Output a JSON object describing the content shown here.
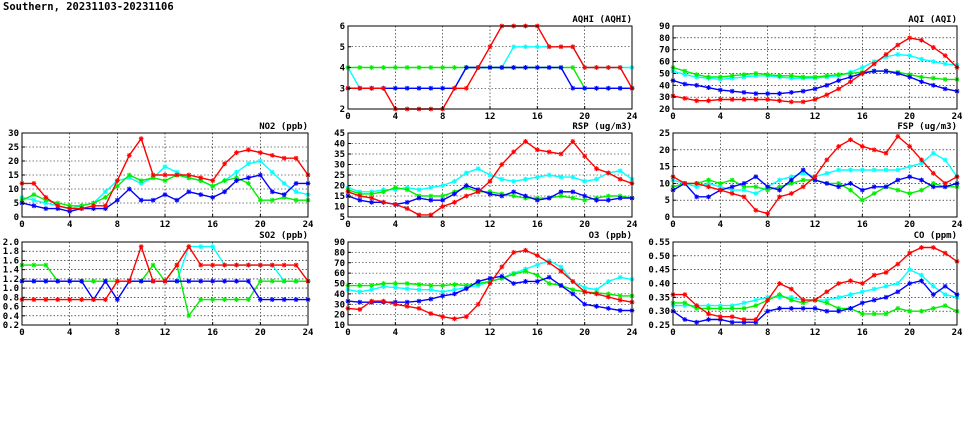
{
  "page": {
    "title": "Southern, 20231103-20231106"
  },
  "series_colors": [
    "#00ffff",
    "#00ee00",
    "#0000ff",
    "#ff0000"
  ],
  "chart_data": [
    {
      "id": "aqhi",
      "type": "line",
      "title": "AQHI (AQHI)",
      "xlim": [
        0,
        24
      ],
      "xticks": [
        0,
        4,
        8,
        12,
        16,
        20,
        24
      ],
      "ylim": [
        2,
        6
      ],
      "yticks": [
        2,
        3,
        4,
        5,
        6
      ],
      "grid": true,
      "series": [
        {
          "values": [
            4,
            3,
            3,
            3,
            3,
            3,
            3,
            3,
            3,
            3,
            4,
            4,
            4,
            4,
            5,
            5,
            5,
            5,
            5,
            5,
            4,
            4,
            4,
            4,
            4
          ]
        },
        {
          "values": [
            4,
            4,
            4,
            4,
            4,
            4,
            4,
            4,
            4,
            4,
            4,
            4,
            4,
            4,
            4,
            4,
            4,
            4,
            4,
            4,
            3,
            3,
            3,
            3,
            3
          ]
        },
        {
          "values": [
            3,
            3,
            3,
            3,
            3,
            3,
            3,
            3,
            3,
            3,
            4,
            4,
            4,
            4,
            4,
            4,
            4,
            4,
            4,
            3,
            3,
            3,
            3,
            3,
            3
          ]
        },
        {
          "values": [
            3,
            3,
            3,
            3,
            2,
            2,
            2,
            2,
            2,
            3,
            3,
            4,
            5,
            6,
            6,
            6,
            6,
            5,
            5,
            5,
            4,
            4,
            4,
            4,
            3
          ]
        }
      ]
    },
    {
      "id": "aqi",
      "type": "line",
      "title": "AQI (AQI)",
      "xlim": [
        0,
        24
      ],
      "xticks": [
        0,
        4,
        8,
        12,
        16,
        20,
        24
      ],
      "ylim": [
        20,
        90
      ],
      "yticks": [
        20,
        30,
        40,
        50,
        60,
        70,
        80,
        90
      ],
      "grid": true,
      "series": [
        {
          "values": [
            52,
            49,
            47,
            46,
            45,
            46,
            47,
            48,
            48,
            47,
            46,
            46,
            46,
            47,
            48,
            51,
            55,
            60,
            64,
            66,
            65,
            62,
            60,
            58,
            57
          ]
        },
        {
          "values": [
            55,
            52,
            49,
            47,
            47,
            48,
            49,
            50,
            49,
            48,
            48,
            47,
            47,
            48,
            49,
            50,
            51,
            52,
            52,
            51,
            49,
            47,
            46,
            45,
            45
          ]
        },
        {
          "values": [
            44,
            41,
            40,
            38,
            36,
            35,
            34,
            33,
            33,
            33,
            34,
            35,
            37,
            40,
            44,
            47,
            50,
            52,
            52,
            50,
            47,
            43,
            40,
            37,
            35
          ]
        },
        {
          "values": [
            31,
            29,
            27,
            27,
            28,
            28,
            28,
            28,
            28,
            27,
            26,
            26,
            28,
            32,
            37,
            43,
            50,
            58,
            66,
            74,
            80,
            78,
            72,
            65,
            55
          ]
        }
      ]
    },
    {
      "id": "no2",
      "type": "line",
      "title": "NO2 (ppb)",
      "xlim": [
        0,
        24
      ],
      "xticks": [
        0,
        4,
        8,
        12,
        16,
        20,
        24
      ],
      "ylim": [
        0,
        30
      ],
      "yticks": [
        0,
        5,
        10,
        15,
        20,
        25,
        30
      ],
      "grid": true,
      "series": [
        {
          "values": [
            7,
            6,
            5,
            4,
            3,
            4,
            5,
            9,
            13,
            14,
            12,
            14,
            18,
            16,
            14,
            13,
            11,
            13,
            16,
            19,
            20,
            16,
            12,
            9,
            8
          ]
        },
        {
          "values": [
            6,
            8,
            6,
            5,
            4,
            4,
            5,
            7,
            11,
            15,
            13,
            14,
            13,
            15,
            14,
            13,
            11,
            13,
            14,
            12,
            6,
            6,
            7,
            6,
            6
          ]
        },
        {
          "values": [
            5,
            4,
            3,
            3,
            2,
            3,
            3,
            3,
            6,
            10,
            6,
            6,
            8,
            6,
            9,
            8,
            7,
            9,
            13,
            14,
            15,
            9,
            8,
            12,
            12
          ]
        },
        {
          "values": [
            12,
            12,
            7,
            4,
            3,
            3,
            4,
            4,
            13,
            22,
            28,
            15,
            15,
            15,
            15,
            14,
            13,
            19,
            23,
            24,
            23,
            22,
            21,
            21,
            15
          ]
        }
      ]
    },
    {
      "id": "rsp",
      "type": "line",
      "title": "RSP (ug/m3)",
      "xlim": [
        0,
        24
      ],
      "xticks": [
        0,
        4,
        8,
        12,
        16,
        20,
        24
      ],
      "ylim": [
        5,
        45
      ],
      "yticks": [
        5,
        10,
        15,
        20,
        25,
        30,
        35,
        40,
        45
      ],
      "grid": true,
      "series": [
        {
          "values": [
            19,
            17,
            17,
            18,
            18,
            19,
            18,
            19,
            20,
            22,
            26,
            28,
            25,
            23,
            22,
            23,
            24,
            25,
            24,
            24,
            22,
            23,
            26,
            27,
            23
          ]
        },
        {
          "values": [
            18,
            16,
            16,
            17,
            19,
            18,
            15,
            15,
            15,
            17,
            19,
            17,
            17,
            16,
            15,
            14,
            14,
            14,
            15,
            14,
            13,
            14,
            15,
            15,
            14
          ]
        },
        {
          "values": [
            15,
            13,
            12,
            12,
            11,
            12,
            14,
            13,
            13,
            16,
            20,
            18,
            16,
            15,
            17,
            15,
            13,
            14,
            17,
            17,
            15,
            13,
            13,
            14,
            14
          ]
        },
        {
          "values": [
            17,
            15,
            14,
            12,
            11,
            9,
            6,
            6,
            10,
            12,
            15,
            17,
            22,
            30,
            36,
            41,
            37,
            36,
            35,
            41,
            34,
            28,
            26,
            23,
            21
          ]
        }
      ]
    },
    {
      "id": "fsp",
      "type": "line",
      "title": "FSP (ug/m3)",
      "xlim": [
        0,
        24
      ],
      "xticks": [
        0,
        4,
        8,
        12,
        16,
        20,
        24
      ],
      "ylim": [
        0,
        25
      ],
      "yticks": [
        0,
        5,
        10,
        15,
        20,
        25
      ],
      "grid": true,
      "series": [
        {
          "values": [
            11,
            10,
            9,
            10,
            9,
            8,
            8,
            7,
            9,
            11,
            12,
            13,
            12,
            13,
            14,
            14,
            14,
            14,
            14,
            14,
            15,
            16,
            19,
            17,
            12
          ]
        },
        {
          "values": [
            9,
            10,
            10,
            11,
            10,
            11,
            9,
            9,
            8,
            9,
            10,
            11,
            11,
            10,
            10,
            8,
            5,
            7,
            9,
            8,
            7,
            8,
            10,
            9,
            9
          ]
        },
        {
          "values": [
            8,
            10,
            6,
            6,
            8,
            9,
            10,
            12,
            9,
            8,
            11,
            14,
            11,
            10,
            9,
            10,
            8,
            9,
            9,
            11,
            12,
            11,
            9,
            9,
            10
          ]
        },
        {
          "values": [
            12,
            10,
            10,
            9,
            8,
            7,
            6,
            2,
            1,
            6,
            7,
            9,
            12,
            17,
            21,
            23,
            21,
            20,
            19,
            24,
            21,
            17,
            13,
            10,
            12
          ]
        }
      ]
    },
    {
      "id": "so2",
      "type": "line",
      "title": "SO2 (ppb)",
      "xlim": [
        0,
        24
      ],
      "xticks": [
        0,
        4,
        8,
        12,
        16,
        20,
        24
      ],
      "ylim": [
        0.2,
        2.0
      ],
      "yticks": [
        0.2,
        0.4,
        0.6,
        0.8,
        1.0,
        1.2,
        1.4,
        1.6,
        1.8,
        2.0
      ],
      "grid": true,
      "series": [
        {
          "values": [
            1.15,
            1.15,
            1.15,
            1.15,
            1.15,
            1.15,
            1.15,
            1.15,
            1.15,
            1.15,
            1.15,
            1.15,
            1.15,
            1.15,
            1.9,
            1.9,
            1.9,
            1.5,
            1.5,
            1.5,
            1.5,
            1.5,
            1.15,
            1.15,
            1.15
          ]
        },
        {
          "values": [
            1.5,
            1.5,
            1.5,
            1.15,
            1.15,
            1.15,
            1.15,
            1.15,
            1.15,
            1.15,
            1.15,
            1.5,
            1.15,
            1.5,
            0.4,
            0.75,
            0.75,
            0.75,
            0.75,
            0.75,
            1.15,
            1.15,
            1.15,
            1.15,
            1.15
          ]
        },
        {
          "values": [
            1.15,
            1.15,
            1.15,
            1.15,
            1.15,
            1.15,
            0.75,
            1.15,
            0.75,
            1.15,
            1.15,
            1.15,
            1.15,
            1.15,
            1.15,
            1.15,
            1.15,
            1.15,
            1.15,
            1.15,
            0.75,
            0.75,
            0.75,
            0.75,
            0.75
          ]
        },
        {
          "values": [
            0.75,
            0.75,
            0.75,
            0.75,
            0.75,
            0.75,
            0.75,
            0.75,
            1.15,
            1.15,
            1.9,
            1.15,
            1.15,
            1.5,
            1.9,
            1.5,
            1.5,
            1.5,
            1.5,
            1.5,
            1.5,
            1.5,
            1.5,
            1.5,
            1.15
          ]
        }
      ]
    },
    {
      "id": "o3",
      "type": "line",
      "title": "O3 (ppb)",
      "xlim": [
        0,
        24
      ],
      "xticks": [
        0,
        4,
        8,
        12,
        16,
        20,
        24
      ],
      "ylim": [
        10,
        90
      ],
      "yticks": [
        10,
        20,
        30,
        40,
        50,
        60,
        70,
        80,
        90
      ],
      "grid": true,
      "series": [
        {
          "values": [
            44,
            42,
            44,
            47,
            46,
            45,
            44,
            44,
            42,
            44,
            46,
            48,
            52,
            55,
            60,
            64,
            68,
            72,
            66,
            52,
            46,
            44,
            52,
            56,
            54
          ]
        },
        {
          "values": [
            48,
            48,
            48,
            50,
            50,
            50,
            49,
            48,
            48,
            49,
            48,
            50,
            52,
            55,
            59,
            62,
            58,
            50,
            48,
            44,
            42,
            41,
            40,
            38,
            38
          ]
        },
        {
          "values": [
            33,
            32,
            32,
            32,
            32,
            32,
            33,
            35,
            38,
            40,
            45,
            52,
            55,
            57,
            50,
            52,
            52,
            56,
            48,
            40,
            30,
            28,
            26,
            24,
            24
          ]
        },
        {
          "values": [
            26,
            25,
            33,
            33,
            30,
            28,
            26,
            21,
            18,
            16,
            18,
            30,
            50,
            66,
            80,
            82,
            77,
            70,
            62,
            52,
            42,
            40,
            37,
            34,
            32
          ]
        }
      ]
    },
    {
      "id": "co",
      "type": "line",
      "title": "CO (ppm)",
      "xlim": [
        0,
        24
      ],
      "xticks": [
        0,
        4,
        8,
        12,
        16,
        20,
        24
      ],
      "ylim": [
        0.25,
        0.55
      ],
      "yticks": [
        0.25,
        0.3,
        0.35,
        0.4,
        0.45,
        0.5,
        0.55
      ],
      "grid": true,
      "series": [
        {
          "values": [
            0.32,
            0.32,
            0.32,
            0.32,
            0.32,
            0.32,
            0.33,
            0.34,
            0.35,
            0.35,
            0.35,
            0.34,
            0.34,
            0.34,
            0.35,
            0.36,
            0.37,
            0.38,
            0.39,
            0.4,
            0.45,
            0.43,
            0.39,
            0.36,
            0.35
          ]
        },
        {
          "values": [
            0.33,
            0.33,
            0.31,
            0.31,
            0.31,
            0.31,
            0.31,
            0.32,
            0.34,
            0.36,
            0.34,
            0.33,
            0.34,
            0.33,
            0.31,
            0.31,
            0.29,
            0.29,
            0.29,
            0.31,
            0.3,
            0.3,
            0.31,
            0.32,
            0.3
          ]
        },
        {
          "values": [
            0.3,
            0.27,
            0.26,
            0.27,
            0.27,
            0.26,
            0.26,
            0.26,
            0.3,
            0.31,
            0.31,
            0.31,
            0.31,
            0.3,
            0.3,
            0.31,
            0.33,
            0.34,
            0.35,
            0.37,
            0.4,
            0.41,
            0.36,
            0.39,
            0.36
          ]
        },
        {
          "values": [
            0.36,
            0.36,
            0.32,
            0.29,
            0.28,
            0.28,
            0.27,
            0.27,
            0.34,
            0.4,
            0.38,
            0.34,
            0.34,
            0.37,
            0.4,
            0.41,
            0.4,
            0.43,
            0.44,
            0.47,
            0.51,
            0.53,
            0.53,
            0.51,
            0.48
          ]
        }
      ]
    }
  ]
}
